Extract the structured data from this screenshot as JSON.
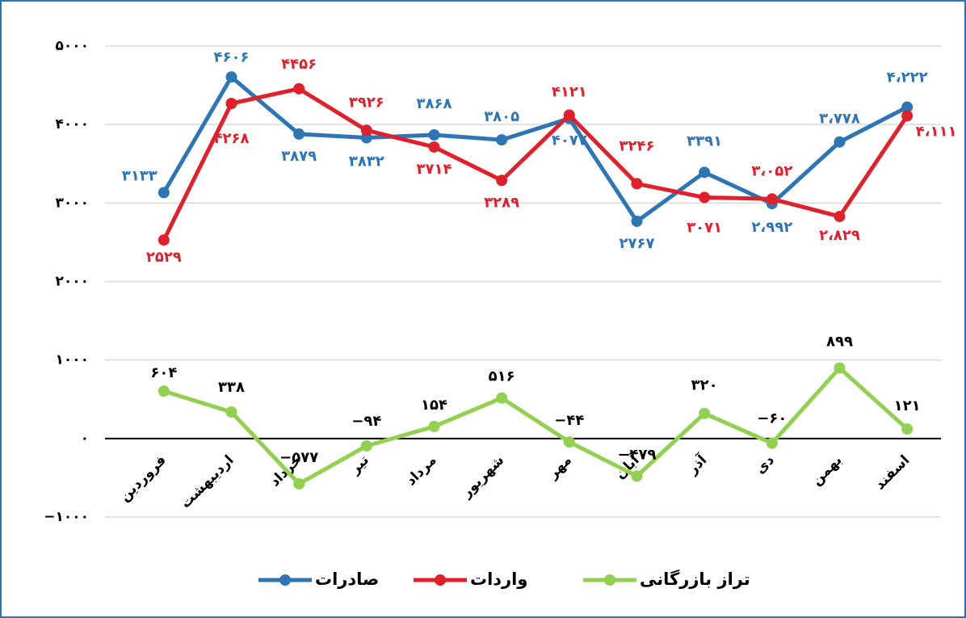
{
  "chart_data": {
    "type": "line",
    "categories": [
      "فروردین",
      "اردیبهشت",
      "خرداد",
      "تیر",
      "مرداد",
      "شهریور",
      "مهر",
      "آبان",
      "آذر",
      "دی",
      "بهمن",
      "اسفند"
    ],
    "series": [
      {
        "name": "صادرات",
        "color": "#2e75b6",
        "values": [
          3133,
          4606,
          3879,
          3832,
          3868,
          3805,
          4077,
          2767,
          3391,
          2992,
          3778,
          4222
        ],
        "value_labels": [
          "۳۱۳۳",
          "۴۶۰۶",
          "۳۸۷۹",
          "۳۸۳۲",
          "۳۸۶۸",
          "۳۸۰۵",
          "۴۰۷۷",
          "۲۷۶۷",
          "۳۳۹۱",
          "۲،۹۹۲",
          "۳،۷۷۸",
          "۴،۲۲۲"
        ]
      },
      {
        "name": "واردات",
        "color": "#e0202a",
        "values": [
          2529,
          4268,
          4456,
          3926,
          3714,
          3289,
          4121,
          3246,
          3071,
          3052,
          2829,
          4111
        ],
        "value_labels": [
          "۲۵۲۹",
          "۴۲۶۸",
          "۴۴۵۶",
          "۳۹۲۶",
          "۳۷۱۴",
          "۳۲۸۹",
          "۴۱۲۱",
          "۳۲۴۶",
          "۳۰۷۱",
          "۳،۰۵۲",
          "۲،۸۲۹",
          "۴،۱۱۱"
        ]
      },
      {
        "name": "تراز بازرگانی",
        "color": "#92d050",
        "values": [
          604,
          338,
          -577,
          -94,
          154,
          516,
          -44,
          -479,
          320,
          -60,
          899,
          121
        ],
        "value_labels": [
          "۶۰۴",
          "۳۳۸",
          "−۵۷۷",
          "−۹۴",
          "۱۵۴",
          "۵۱۶",
          "−۴۴",
          "−۴۷۹",
          "۳۲۰",
          "−۶۰",
          "۸۹۹",
          "۱۲۱"
        ]
      }
    ],
    "ylim": [
      -1000,
      5000
    ],
    "yticks": [
      {
        "value": -1000,
        "label": "−۱۰۰۰"
      },
      {
        "value": 0,
        "label": "۰"
      },
      {
        "value": 1000,
        "label": "۱۰۰۰"
      },
      {
        "value": 2000,
        "label": "۲۰۰۰"
      },
      {
        "value": 3000,
        "label": "۳۰۰۰"
      },
      {
        "value": 4000,
        "label": "۴۰۰۰"
      },
      {
        "value": 5000,
        "label": "۵۰۰۰"
      }
    ],
    "grid": true,
    "legend": "bottom"
  }
}
